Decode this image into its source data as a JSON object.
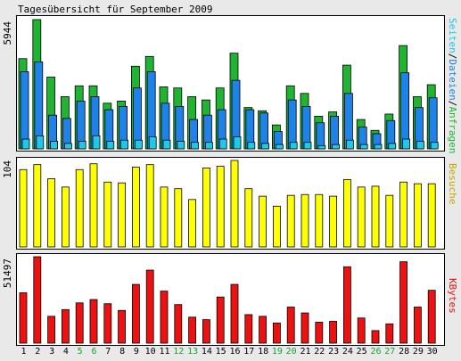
{
  "title": "Tagesübersicht für September 2009",
  "colors": {
    "hits": "#1fb533",
    "files": "#1f82e8",
    "pages": "#1ec8e6",
    "visits": "#ffff00",
    "kbytes": "#ee1111",
    "weekend": "#18a030",
    "weekday": "#000000"
  },
  "legends": {
    "top": [
      {
        "text": "Seiten",
        "color": "#1ec8e6"
      },
      {
        "text": "/",
        "color": "#000000"
      },
      {
        "text": "Dateien",
        "color": "#1f82e8"
      },
      {
        "text": "/",
        "color": "#000000"
      },
      {
        "text": "Anfragen",
        "color": "#1fb533"
      }
    ],
    "middle": {
      "text": "Besuche",
      "color": "#c8a800"
    },
    "bottom": {
      "text": "KBytes",
      "color": "#ee1111"
    }
  },
  "chart_data": [
    {
      "type": "bar",
      "name": "hits-files-pages",
      "max_label": "5944",
      "ylim": [
        0,
        5944
      ],
      "categories": [
        "1",
        "2",
        "3",
        "4",
        "5",
        "6",
        "7",
        "8",
        "9",
        "10",
        "11",
        "12",
        "13",
        "14",
        "15",
        "16",
        "17",
        "18",
        "19",
        "20",
        "21",
        "22",
        "23",
        "24",
        "25",
        "26",
        "27",
        "28",
        "29",
        "30"
      ],
      "weekend_days": [
        "5",
        "6",
        "12",
        "13",
        "19",
        "20",
        "26",
        "27"
      ],
      "series": [
        {
          "key": "hits",
          "values": [
            4150,
            5944,
            3300,
            2400,
            2900,
            2900,
            2100,
            2200,
            3800,
            4250,
            2850,
            2800,
            2400,
            2250,
            2800,
            4400,
            1900,
            1750,
            1100,
            2900,
            2550,
            1500,
            1700,
            3850,
            1350,
            850,
            1600,
            4750,
            2400,
            2950
          ]
        },
        {
          "key": "files",
          "values": [
            3550,
            4000,
            1550,
            1400,
            2200,
            2400,
            1800,
            1950,
            2800,
            3550,
            2100,
            1950,
            1350,
            1550,
            1800,
            3150,
            1800,
            1650,
            800,
            2250,
            1950,
            1200,
            1500,
            2550,
            1000,
            700,
            1300,
            3500,
            1900,
            2350
          ]
        },
        {
          "key": "pages",
          "values": [
            450,
            600,
            350,
            250,
            350,
            600,
            350,
            400,
            400,
            550,
            400,
            350,
            300,
            300,
            450,
            550,
            300,
            250,
            200,
            300,
            300,
            150,
            200,
            400,
            200,
            200,
            250,
            450,
            350,
            300
          ]
        }
      ]
    },
    {
      "type": "bar",
      "name": "visits",
      "max_label": "104",
      "ylim": [
        0,
        104
      ],
      "categories": [
        "1",
        "2",
        "3",
        "4",
        "5",
        "6",
        "7",
        "8",
        "9",
        "10",
        "11",
        "12",
        "13",
        "14",
        "15",
        "16",
        "17",
        "18",
        "19",
        "20",
        "21",
        "22",
        "23",
        "24",
        "25",
        "26",
        "27",
        "28",
        "29",
        "30"
      ],
      "series": [
        {
          "key": "visits",
          "values": [
            93,
            99,
            82,
            72,
            93,
            100,
            78,
            77,
            96,
            99,
            72,
            70,
            57,
            95,
            97,
            104,
            70,
            61,
            49,
            62,
            63,
            63,
            61,
            81,
            72,
            73,
            62,
            78,
            76,
            76
          ]
        }
      ]
    },
    {
      "type": "bar",
      "name": "kbytes",
      "max_label": "51497",
      "ylim": [
        0,
        51497
      ],
      "categories": [
        "1",
        "2",
        "3",
        "4",
        "5",
        "6",
        "7",
        "8",
        "9",
        "10",
        "11",
        "12",
        "13",
        "14",
        "15",
        "16",
        "17",
        "18",
        "19",
        "20",
        "21",
        "22",
        "23",
        "24",
        "25",
        "26",
        "27",
        "28",
        "29",
        "30"
      ],
      "series": [
        {
          "key": "kbytes",
          "values": [
            30000,
            51497,
            16000,
            20000,
            24000,
            26000,
            23500,
            19500,
            35000,
            43500,
            31000,
            23000,
            15500,
            14000,
            27500,
            35000,
            17000,
            16000,
            12000,
            21500,
            18000,
            12500,
            13000,
            45500,
            15000,
            7500,
            11500,
            48500,
            21500,
            31500
          ]
        }
      ]
    }
  ]
}
